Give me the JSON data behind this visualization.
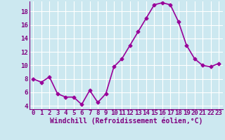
{
  "x": [
    0,
    1,
    2,
    3,
    4,
    5,
    6,
    7,
    8,
    9,
    10,
    11,
    12,
    13,
    14,
    15,
    16,
    17,
    18,
    19,
    20,
    21,
    22,
    23
  ],
  "y": [
    8.0,
    7.5,
    8.3,
    5.8,
    5.3,
    5.3,
    4.2,
    6.3,
    4.5,
    5.8,
    9.8,
    11.0,
    13.0,
    15.0,
    17.0,
    19.0,
    19.3,
    19.0,
    16.5,
    13.0,
    11.0,
    10.0,
    9.8,
    10.3
  ],
  "line_color": "#990099",
  "marker": "D",
  "marker_size": 2.5,
  "xlabel": "Windchill (Refroidissement éolien,°C)",
  "xlim": [
    -0.5,
    23.5
  ],
  "ylim": [
    3.5,
    19.5
  ],
  "yticks": [
    4,
    6,
    8,
    10,
    12,
    14,
    16,
    18
  ],
  "xtick_labels": [
    "0",
    "1",
    "2",
    "3",
    "4",
    "5",
    "6",
    "7",
    "8",
    "9",
    "10",
    "11",
    "12",
    "13",
    "14",
    "15",
    "16",
    "17",
    "18",
    "19",
    "20",
    "21",
    "22",
    "23"
  ],
  "background_color": "#cce8f0",
  "grid_color": "#b0d8e8",
  "tick_label_color": "#800080",
  "xlabel_color": "#800080",
  "xlabel_fontsize": 7,
  "tick_fontsize": 6.5,
  "line_width": 1.2
}
